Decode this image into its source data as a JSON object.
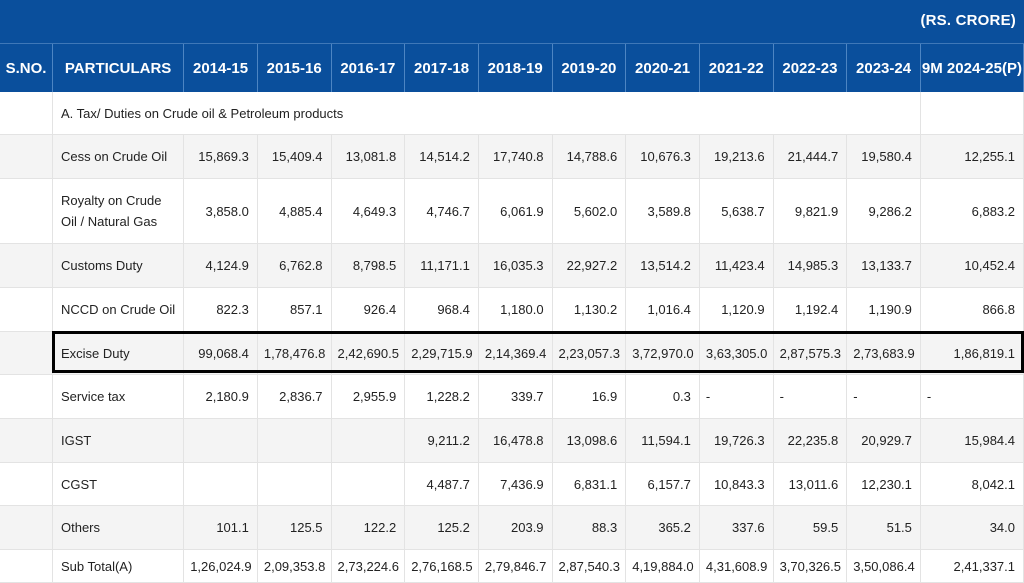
{
  "unit_label": "(RS. CRORE)",
  "headers": [
    "S.NO.",
    "PARTICULARS",
    "2014-15",
    "2015-16",
    "2016-17",
    "2017-18",
    "2018-19",
    "2019-20",
    "2020-21",
    "2021-22",
    "2022-23",
    "2023-24",
    "9M 2024-25(P)"
  ],
  "section_title": "A. Tax/ Duties on Crude oil & Petroleum products",
  "rows": [
    {
      "label": "Cess on Crude Oil",
      "values": [
        "15,869.3",
        "15,409.4",
        "13,081.8",
        "14,514.2",
        "17,740.8",
        "14,788.6",
        "10,676.3",
        "19,213.6",
        "21,444.7",
        "19,580.4",
        "12,255.1"
      ]
    },
    {
      "label": "Royalty on Crude Oil / Natural Gas",
      "values": [
        "3,858.0",
        "4,885.4",
        "4,649.3",
        "4,746.7",
        "6,061.9",
        "5,602.0",
        "3,589.8",
        "5,638.7",
        "9,821.9",
        "9,286.2",
        "6,883.2"
      ]
    },
    {
      "label": "Customs Duty",
      "values": [
        "4,124.9",
        "6,762.8",
        "8,798.5",
        "11,171.1",
        "16,035.3",
        "22,927.2",
        "13,514.2",
        "11,423.4",
        "14,985.3",
        "13,133.7",
        "10,452.4"
      ]
    },
    {
      "label": "NCCD on Crude Oil",
      "values": [
        "822.3",
        "857.1",
        "926.4",
        "968.4",
        "1,180.0",
        "1,130.2",
        "1,016.4",
        "1,120.9",
        "1,192.4",
        "1,190.9",
        "866.8"
      ]
    },
    {
      "label": "Excise Duty",
      "values": [
        "99,068.4",
        "1,78,476.8",
        "2,42,690.5",
        "2,29,715.9",
        "2,14,369.4",
        "2,23,057.3",
        "3,72,970.0",
        "3,63,305.0",
        "2,87,575.3",
        "2,73,683.9",
        "1,86,819.1"
      ]
    },
    {
      "label": "Service tax",
      "values": [
        "2,180.9",
        "2,836.7",
        "2,955.9",
        "1,228.2",
        "339.7",
        "16.9",
        "0.3",
        "-",
        "-",
        "-",
        "-"
      ]
    },
    {
      "label": "IGST",
      "values": [
        "",
        "",
        "",
        "9,211.2",
        "16,478.8",
        "13,098.6",
        "11,594.1",
        "19,726.3",
        "22,235.8",
        "20,929.7",
        "15,984.4"
      ]
    },
    {
      "label": "CGST",
      "values": [
        "",
        "",
        "",
        "4,487.7",
        "7,436.9",
        "6,831.1",
        "6,157.7",
        "10,843.3",
        "13,011.6",
        "12,230.1",
        "8,042.1"
      ]
    },
    {
      "label": "Others",
      "values": [
        "101.1",
        "125.5",
        "122.2",
        "125.2",
        "203.9",
        "88.3",
        "365.2",
        "337.6",
        "59.5",
        "51.5",
        "34.0"
      ]
    },
    {
      "label": "Sub Total(A)",
      "values": [
        "1,26,024.9",
        "2,09,353.8",
        "2,73,224.6",
        "2,76,168.5",
        "2,79,846.7",
        "2,87,540.3",
        "4,19,884.0",
        "4,31,608.9",
        "3,70,326.5",
        "3,50,086.4",
        "2,41,337.1"
      ]
    }
  ],
  "colors": {
    "header_bg": "#0a4f9c",
    "highlight_border": "#000000"
  }
}
